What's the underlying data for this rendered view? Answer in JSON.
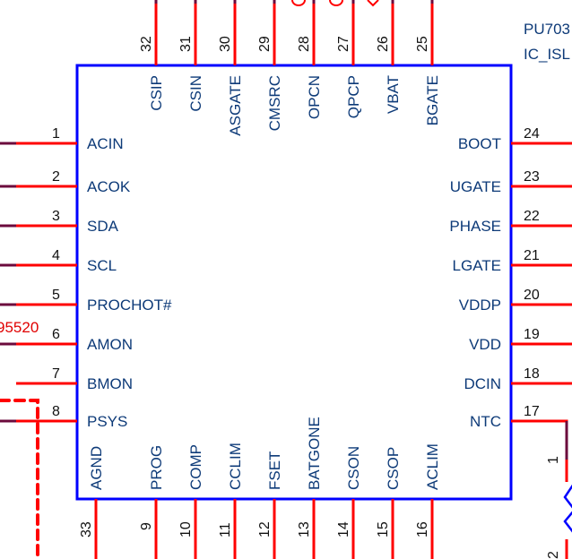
{
  "component": {
    "refdes": "PU703",
    "part": "IC_ISL",
    "colors": {
      "body": "#0000ff",
      "pin": "#ff0000",
      "wire": "#6b0a3c",
      "text": "#0d3a78",
      "net": "#e00000"
    },
    "left_pins": [
      {
        "num": "1",
        "name": "ACIN"
      },
      {
        "num": "2",
        "name": "ACOK"
      },
      {
        "num": "3",
        "name": "SDA"
      },
      {
        "num": "4",
        "name": "SCL"
      },
      {
        "num": "5",
        "name": "PROCHOT#"
      },
      {
        "num": "6",
        "name": "AMON"
      },
      {
        "num": "7",
        "name": "BMON"
      },
      {
        "num": "8",
        "name": "PSYS"
      }
    ],
    "right_pins": [
      {
        "num": "24",
        "name": "BOOT"
      },
      {
        "num": "23",
        "name": "UGATE"
      },
      {
        "num": "22",
        "name": "PHASE"
      },
      {
        "num": "21",
        "name": "LGATE"
      },
      {
        "num": "20",
        "name": "VDDP"
      },
      {
        "num": "19",
        "name": "VDD"
      },
      {
        "num": "18",
        "name": "DCIN"
      },
      {
        "num": "17",
        "name": "NTC"
      }
    ],
    "top_pins": [
      {
        "num": "32",
        "name": "CSIP"
      },
      {
        "num": "31",
        "name": "CSIN"
      },
      {
        "num": "30",
        "name": "ASGATE"
      },
      {
        "num": "29",
        "name": "CMSRC"
      },
      {
        "num": "28",
        "name": "OPCN"
      },
      {
        "num": "27",
        "name": "QPCP"
      },
      {
        "num": "26",
        "name": "VBAT"
      },
      {
        "num": "25",
        "name": "BGATE"
      }
    ],
    "bottom_pins": [
      {
        "num": "33",
        "name": "AGND"
      },
      {
        "num": "9",
        "name": "PROG"
      },
      {
        "num": "10",
        "name": "COMP"
      },
      {
        "num": "11",
        "name": "CCLIM"
      },
      {
        "num": "12",
        "name": "FSET"
      },
      {
        "num": "13",
        "name": "BATGONE"
      },
      {
        "num": "14",
        "name": "CSON"
      },
      {
        "num": "15",
        "name": "CSOP"
      },
      {
        "num": "16",
        "name": "ACLIM"
      }
    ]
  },
  "nets": {
    "left_partial": "95520"
  },
  "thermistor": {
    "pin1": "1",
    "pin2": "2"
  }
}
